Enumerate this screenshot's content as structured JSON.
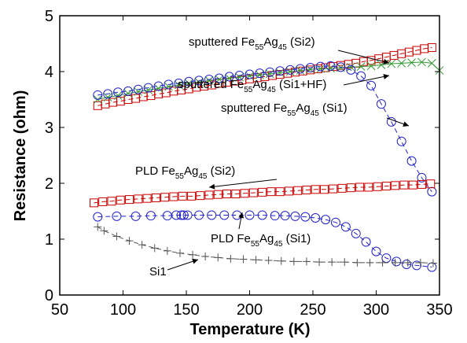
{
  "chart_data": {
    "type": "scatter",
    "title": "",
    "xlabel": "Temperature (K)",
    "ylabel": "Resistance (ohm)",
    "xlim": [
      50,
      350
    ],
    "ylim": [
      0,
      5
    ],
    "xticks": [
      "50",
      "100",
      "150",
      "200",
      "250",
      "300",
      "350"
    ],
    "yticks": [
      "0",
      "1",
      "2",
      "3",
      "4",
      "5"
    ],
    "grid": false,
    "legend": "none",
    "series": [
      {
        "name": "sputtered Fe55Ag45 (Si2)",
        "marker": "square",
        "line": "dashed",
        "color": "#cc0000",
        "x": [
          80,
          86,
          92,
          98,
          104,
          110,
          116,
          122,
          128,
          134,
          140,
          146,
          152,
          158,
          164,
          170,
          176,
          182,
          188,
          194,
          200,
          206,
          212,
          218,
          224,
          230,
          236,
          242,
          248,
          254,
          260,
          266,
          272,
          278,
          284,
          290,
          296,
          302,
          308,
          314,
          320,
          326,
          332,
          338,
          344
        ],
        "y": [
          3.39,
          3.42,
          3.45,
          3.47,
          3.5,
          3.52,
          3.55,
          3.57,
          3.6,
          3.62,
          3.65,
          3.67,
          3.69,
          3.72,
          3.74,
          3.76,
          3.79,
          3.81,
          3.83,
          3.85,
          3.87,
          3.89,
          3.91,
          3.93,
          3.95,
          3.97,
          3.99,
          4.01,
          4.03,
          4.05,
          4.07,
          4.09,
          4.11,
          4.13,
          4.15,
          4.18,
          4.2,
          4.23,
          4.26,
          4.29,
          4.32,
          4.35,
          4.38,
          4.41,
          4.43
        ]
      },
      {
        "name": "sputtered Fe55Ag45 (Si1+HF)",
        "marker": "x",
        "line": "solid",
        "color": "#339933",
        "x": [
          80,
          88,
          96,
          104,
          112,
          120,
          128,
          136,
          144,
          152,
          160,
          168,
          176,
          184,
          192,
          200,
          208,
          216,
          224,
          232,
          240,
          248,
          256,
          264,
          272,
          280,
          288,
          296,
          304,
          312,
          320,
          328,
          336,
          344,
          350
        ],
        "y": [
          3.5,
          3.54,
          3.57,
          3.61,
          3.64,
          3.67,
          3.7,
          3.73,
          3.76,
          3.79,
          3.81,
          3.84,
          3.86,
          3.88,
          3.9,
          3.92,
          3.94,
          3.96,
          3.98,
          4.0,
          4.02,
          4.04,
          4.05,
          4.06,
          4.07,
          4.08,
          4.09,
          4.1,
          4.12,
          4.14,
          4.15,
          4.16,
          4.17,
          4.15,
          4.02
        ]
      },
      {
        "name": "sputtered Fe55Ag45 (Si1)",
        "marker": "circle",
        "line": "dashed",
        "color": "#2222cc",
        "x": [
          80,
          88,
          96,
          104,
          112,
          120,
          128,
          136,
          144,
          152,
          160,
          168,
          176,
          184,
          192,
          200,
          208,
          216,
          224,
          232,
          240,
          248,
          256,
          264,
          272,
          280,
          288,
          296,
          304,
          312,
          320,
          328,
          336,
          344
        ],
        "y": [
          3.58,
          3.6,
          3.63,
          3.65,
          3.68,
          3.71,
          3.74,
          3.77,
          3.79,
          3.82,
          3.84,
          3.86,
          3.88,
          3.91,
          3.93,
          3.95,
          3.97,
          3.99,
          4.01,
          4.03,
          4.05,
          4.07,
          4.09,
          4.1,
          4.08,
          4.03,
          3.92,
          3.75,
          3.42,
          3.1,
          2.75,
          2.4,
          2.1,
          1.85
        ]
      },
      {
        "name": "PLD Fe55Ag45 (Si2)",
        "marker": "square",
        "line": "dashed",
        "color": "#cc0000",
        "x": [
          77,
          84,
          91,
          98,
          105,
          112,
          119,
          126,
          133,
          140,
          147,
          154,
          161,
          168,
          175,
          182,
          189,
          196,
          203,
          210,
          217,
          224,
          231,
          238,
          245,
          252,
          259,
          266,
          273,
          280,
          287,
          294,
          301,
          308,
          315,
          322,
          329,
          336,
          343
        ],
        "y": [
          1.65,
          1.67,
          1.68,
          1.7,
          1.71,
          1.72,
          1.73,
          1.74,
          1.75,
          1.76,
          1.77,
          1.77,
          1.78,
          1.79,
          1.8,
          1.81,
          1.81,
          1.82,
          1.83,
          1.84,
          1.85,
          1.85,
          1.86,
          1.87,
          1.88,
          1.89,
          1.89,
          1.9,
          1.91,
          1.92,
          1.93,
          1.93,
          1.94,
          1.95,
          1.96,
          1.97,
          1.97,
          1.98,
          1.99
        ]
      },
      {
        "name": "PLD Fe55Ag45 (Si1)",
        "marker": "circle",
        "line": "dashed",
        "color": "#2222cc",
        "x": [
          80,
          95,
          110,
          122,
          135,
          142,
          146,
          148,
          151,
          160,
          170,
          180,
          190,
          200,
          210,
          220,
          228,
          236,
          244,
          252,
          260,
          268,
          276,
          284,
          292,
          300,
          308,
          316,
          324,
          332,
          344
        ],
        "y": [
          1.4,
          1.41,
          1.41,
          1.42,
          1.42,
          1.43,
          1.43,
          1.43,
          1.43,
          1.43,
          1.43,
          1.43,
          1.43,
          1.43,
          1.43,
          1.42,
          1.42,
          1.41,
          1.4,
          1.38,
          1.35,
          1.3,
          1.22,
          1.1,
          0.95,
          0.78,
          0.66,
          0.6,
          0.55,
          0.53,
          0.5
        ]
      },
      {
        "name": "Si1",
        "marker": "plus",
        "line": "dashed",
        "color": "#555555",
        "x": [
          80,
          85,
          95,
          105,
          115,
          125,
          135,
          145,
          155,
          165,
          175,
          185,
          195,
          205,
          215,
          225,
          235,
          245,
          255,
          265,
          275,
          285,
          295,
          305,
          315,
          325,
          335,
          345
        ],
        "y": [
          1.22,
          1.15,
          1.05,
          0.97,
          0.9,
          0.84,
          0.79,
          0.75,
          0.72,
          0.69,
          0.67,
          0.65,
          0.64,
          0.63,
          0.62,
          0.61,
          0.6,
          0.6,
          0.59,
          0.59,
          0.59,
          0.58,
          0.58,
          0.58,
          0.58,
          0.58,
          0.58,
          0.57
        ]
      }
    ],
    "annotations": [
      {
        "pre": "sputtered Fe",
        "sub1": "55",
        "mid": "Ag",
        "sub2": "45",
        "post": " (Si2)"
      },
      {
        "pre": "sputtered Fe",
        "sub1": "55",
        "mid": "Ag",
        "sub2": "45",
        "post": " (Si1+HF)"
      },
      {
        "pre": "sputtered Fe",
        "sub1": "55",
        "mid": "Ag",
        "sub2": "45",
        "post": " (Si1)"
      },
      {
        "pre": "PLD Fe",
        "sub1": "55",
        "mid": "Ag",
        "sub2": "45",
        "post": " (Si2)"
      },
      {
        "pre": "PLD Fe",
        "sub1": "55",
        "mid": "Ag",
        "sub2": "45",
        "post": " (Si1)"
      },
      {
        "pre": "Si1",
        "sub1": "",
        "mid": "",
        "sub2": "",
        "post": ""
      }
    ]
  }
}
